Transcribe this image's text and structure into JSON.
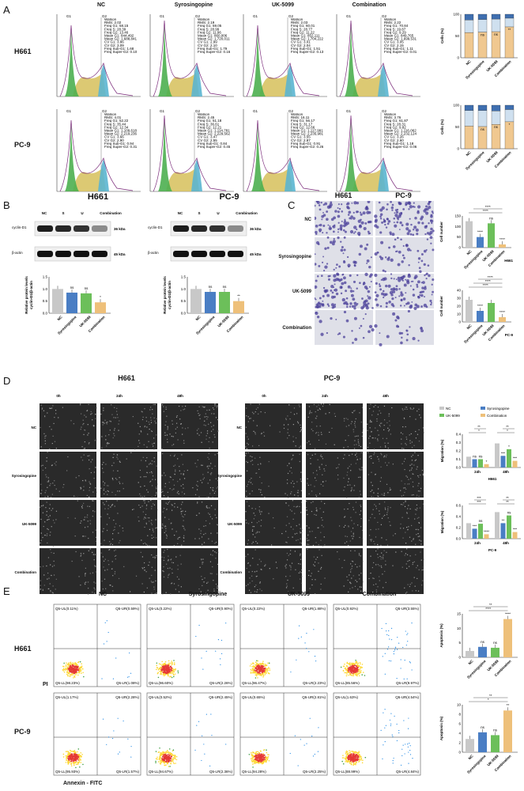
{
  "panels": {
    "A": {
      "label": "A",
      "columns": [
        "NC",
        "Syrosingopine",
        "UK-5099",
        "Combination"
      ],
      "rows": [
        "H661",
        "PC-9"
      ],
      "gate_labels": [
        "G1",
        "G2"
      ],
      "stat_header": "Watson",
      "stats": [
        [
          "RMS: 2.02",
          "Freq G1: 58.15",
          "Freq S: 28.39",
          "Freq G2: 13.46",
          "Mean G1: 844,492",
          "Mean G2: 1,688,841",
          "CV G1: 3.86",
          "CV G2: 3.09",
          "Freq Sub-G1: 1.68",
          "Freq Super-G2: 0.10"
        ],
        [
          "RMS: 2.19",
          "Freq G1: 59.05",
          "Freq S: 28.99",
          "Freq G2: 11.96",
          "Mean G1: 860,006",
          "Mean G2: 1,720,011",
          "CV G1: 2.99",
          "CV G2: 2.10",
          "Freq Sub-G1: 1.79",
          "Freq Super-G2: 0.16"
        ],
        [
          "RMS: 2.03",
          "Freq G1: 60.01",
          "Freq S: 28.77",
          "Freq G2: 11.22",
          "Mean G1: 852,111",
          "Mean G2: 1,704,222",
          "CV G1: 3.01",
          "CV G2: 2.04",
          "Freq Sub-G1: 1.51",
          "Freq Super-G2: 0.13"
        ],
        [
          "RMS: 2.22",
          "Freq G1: 70.84",
          "Freq S: 19.87",
          "Freq G2: 9.29",
          "Mean G1: 849,765",
          "Mean G2: 1,699,531",
          "CV G1: 3.05",
          "CV G2: 2.15",
          "Freq Sub-G1: 1.11",
          "Freq Super-G2: 0.01"
        ]
      ],
      "stats2": [
        [
          "RMS: 4.01",
          "Freq G1: 52.22",
          "Freq S: 35.44",
          "Freq G2: 12.34",
          "Mean G1: 1,109,618",
          "Mean G2: 2,219,236",
          "CV G1: 3.66",
          "CV G2: 2.90",
          "Freq Sub-G1: 0.94",
          "Freq Super-G2: 0.31"
        ],
        [
          "RMS: 2.45",
          "Freq G1: 51.18",
          "Freq S: 36.61",
          "Freq G2: 12.21",
          "Mean G1: 1,114,781",
          "Mean G2: 2,229,562",
          "CV G1: 3.47",
          "CV G2: 2.55",
          "Freq Sub-G1: 0.84",
          "Freq Super-G2: 0.45"
        ],
        [
          "RMS: 16.11",
          "Freq G1: 56.17",
          "Freq S: 31.17",
          "Freq G2: 12.66",
          "Mean G1: 1,117,991",
          "Mean G2: 2,235,981",
          "CV G1: 3.55",
          "CV G2: 2.87",
          "Freq Sub-G1: 0.91",
          "Freq Super-G2: 0.26"
        ],
        [
          "RMS: 3.76",
          "Freq G1: 61.87",
          "Freq S: 28.31",
          "Freq G2: 9.82",
          "Mean G1: 1,116,062",
          "Mean G2: 2,232,124",
          "CV G1: 3.26",
          "CV G2: 2.60",
          "Freq Sub-G1: 1.18",
          "Freq Super-G2: 0.06"
        ]
      ],
      "bar_ylabel": "Cells (%)",
      "bar_yticks": [
        "0",
        "50",
        "100"
      ],
      "bar_categories": [
        "NC",
        "Syrosingopine",
        "UK-5099",
        "Combination"
      ],
      "bar_stacks_H661": [
        [
          58,
          29,
          13
        ],
        [
          59,
          29,
          12
        ],
        [
          60,
          29,
          11
        ],
        [
          71,
          20,
          9
        ]
      ],
      "bar_stacks_PC9": [
        [
          52,
          36,
          12
        ],
        [
          51,
          37,
          12
        ],
        [
          56,
          31,
          13
        ],
        [
          62,
          28,
          10
        ]
      ],
      "sig_H661": [
        "",
        "ns",
        "ns",
        "**"
      ],
      "sig_PC9": [
        "",
        "ns",
        "ns",
        "*"
      ]
    },
    "B": {
      "label": "B",
      "blots": [
        {
          "title": "H661",
          "lanes": [
            "NC",
            "S",
            "U",
            "Combination"
          ],
          "rows": [
            "cyclin-D1",
            "β-actin"
          ],
          "kda": [
            "36 kDa",
            "45 kDa"
          ],
          "bar_values": [
            1.0,
            0.85,
            0.82,
            0.45
          ],
          "sig": [
            "",
            "ns",
            "ns",
            "*"
          ]
        },
        {
          "title": "PC-9",
          "lanes": [
            "NC",
            "S",
            "U",
            "Combination"
          ],
          "rows": [
            "cyclin-D1",
            "β-actin"
          ],
          "kda": [
            "36 kDa",
            "45 kDa"
          ],
          "bar_values": [
            1.0,
            0.88,
            0.88,
            0.5
          ],
          "sig": [
            "",
            "ns",
            "ns",
            "**"
          ]
        }
      ],
      "bar_ylabel_1": "Relative protein levels",
      "bar_ylabel_2": "cyclin-D1/β-actin",
      "bar_yticks": [
        "0.0",
        "0.5",
        "1.0",
        "1.5"
      ],
      "bar_categories": [
        "NC",
        "Syrosingopine",
        "UK-5099",
        "Combination"
      ]
    },
    "C": {
      "label": "C",
      "columns": [
        "H661",
        "PC-9"
      ],
      "rows": [
        "NC",
        "Syrosingopine",
        "UK-5099",
        "Combination"
      ],
      "charts": [
        {
          "caption": "H661",
          "values": [
            125,
            50,
            115,
            15
          ],
          "yticks": [
            "0",
            "50",
            "100",
            "150"
          ],
          "ymax": 150,
          "sig": [
            "",
            "****",
            "ns",
            "****"
          ],
          "brackets": [
            "****",
            "****"
          ]
        },
        {
          "caption": "PC-9",
          "values": [
            28,
            14,
            24,
            6
          ],
          "yticks": [
            "0",
            "10",
            "20",
            "30",
            "40"
          ],
          "ymax": 40,
          "sig": [
            "",
            "****",
            "",
            "****"
          ],
          "brackets": [
            "****",
            "****",
            "****"
          ]
        }
      ],
      "ylabel": "Cell number",
      "bar_categories": [
        "NC",
        "Syrosingopine",
        "UK-5099",
        "Combination"
      ]
    },
    "D": {
      "label": "D",
      "groups": [
        {
          "title": "H661",
          "times": [
            "0h",
            "24h",
            "48h"
          ]
        },
        {
          "title": "PC-9",
          "times": [
            "0h",
            "24h",
            "48h"
          ]
        }
      ],
      "rows": [
        "NC",
        "Syrosingopine",
        "UK-5099",
        "Combination"
      ],
      "legend": [
        "NC",
        "Syrosingopine",
        "UK-5099",
        "Combination"
      ],
      "ylabel": "Migration (%)",
      "charts": [
        {
          "caption": "H661",
          "yticks": [
            "0.0",
            "0.1",
            "0.2",
            "0.3",
            "0.4"
          ],
          "ymax": 0.4,
          "times": [
            "24h",
            "48h"
          ],
          "values": [
            [
              0.13,
              0.1,
              0.1,
              0.04
            ],
            [
              0.29,
              0.14,
              0.22,
              0.08
            ]
          ],
          "sig": [
            [
              "",
              "ns",
              "ns",
              "*"
            ],
            [
              "",
              "***",
              "*",
              "***"
            ]
          ],
          "brackets": [
            [
              "*",
              "**"
            ],
            [
              "*",
              "**"
            ]
          ]
        },
        {
          "caption": "PC-9",
          "yticks": [
            "0.0",
            "0.2",
            "0.4",
            "0.6"
          ],
          "ymax": 0.6,
          "times": [
            "24h",
            "48h"
          ],
          "values": [
            [
              0.28,
              0.18,
              0.27,
              0.08
            ],
            [
              0.48,
              0.28,
              0.42,
              0.12
            ]
          ],
          "sig": [
            [
              "",
              "***",
              "ns",
              "****"
            ],
            [
              "",
              "**",
              "ns",
              "***"
            ]
          ],
          "brackets": [
            [
              "***",
              "***"
            ],
            [
              "**",
              "**"
            ]
          ]
        }
      ]
    },
    "E": {
      "label": "E",
      "columns": [
        "NC",
        "Syrosingopine",
        "UK-5099",
        "Combination"
      ],
      "rows": [
        "H661",
        "PC-9"
      ],
      "x_axis": "Annexin - FITC",
      "y_axis": "PI",
      "quadrants_H661": [
        [
          "Q5-UL(0.11%)",
          "Q5-UR(0.59%)",
          "Q5-LL(98.23%)",
          "Q5-LR(1.08%)"
        ],
        [
          "Q5-UL(0.22%)",
          "Q5-UR(0.90%)",
          "Q5-LL(96.60%)",
          "Q5-LR(2.26%)"
        ],
        [
          "Q5-UL(0.22%)",
          "Q5-UR(1.88%)",
          "Q5-LL(96.47%)",
          "Q5-LR(2.23%)"
        ],
        [
          "Q5-UL(0.92%)",
          "Q5-UR(3.55%)",
          "Q5-LL(85.56%)",
          "Q5-LR(9.97%)"
        ]
      ],
      "quadrants_PC9": [
        [
          "Q5-UL(1.17%)",
          "Q5-UR(2.28%)",
          "Q5-LL(95.93%)",
          "Q5-LR(1.57%)"
        ],
        [
          "Q5-UL(0.52%)",
          "Q5-UR(2.45%)",
          "Q5-LL(94.67%)",
          "Q5-LR(2.36%)"
        ],
        [
          "Q5-UL(0.65%)",
          "Q5-UR(2.81%)",
          "Q5-LL(94.28%)",
          "Q5-LR(2.25%)"
        ],
        [
          "Q5-UL(1.63%)",
          "Q5-UR(4.54%)",
          "Q5-LL(88.99%)",
          "Q5-LR(4.84%)"
        ]
      ],
      "ylabel": "Apoptosis (%)",
      "charts": [
        {
          "caption": "",
          "yticks": [
            "0",
            "5",
            "10",
            "15"
          ],
          "ymax": 15,
          "values": [
            2.2,
            3.6,
            3.3,
            13.2
          ],
          "sig": [
            "",
            "ns",
            "ns",
            "****"
          ],
          "brackets": [
            "****",
            "**"
          ]
        },
        {
          "caption": "",
          "yticks": [
            "0",
            "2",
            "4",
            "6",
            "8",
            "10"
          ],
          "ymax": 10,
          "values": [
            2.8,
            4.2,
            3.6,
            8.8
          ],
          "sig": [
            "",
            "ns",
            "ns",
            "**"
          ],
          "brackets": [
            "*",
            "**"
          ]
        }
      ],
      "bar_categories": [
        "NC",
        "Syrosingopine",
        "UK-5099",
        "Combination"
      ]
    }
  },
  "colors": {
    "nc": "#c8c8c8",
    "syro": "#4a7ec4",
    "uk": "#6cbf5a",
    "combo": "#eec07a",
    "g1": "#4caf50",
    "s": "#d6c05a",
    "g2": "#5bb5d0",
    "stackTop": "#3f6fb0",
    "stackMid": "#cfe0ef",
    "stackBot": "#f0c890"
  }
}
